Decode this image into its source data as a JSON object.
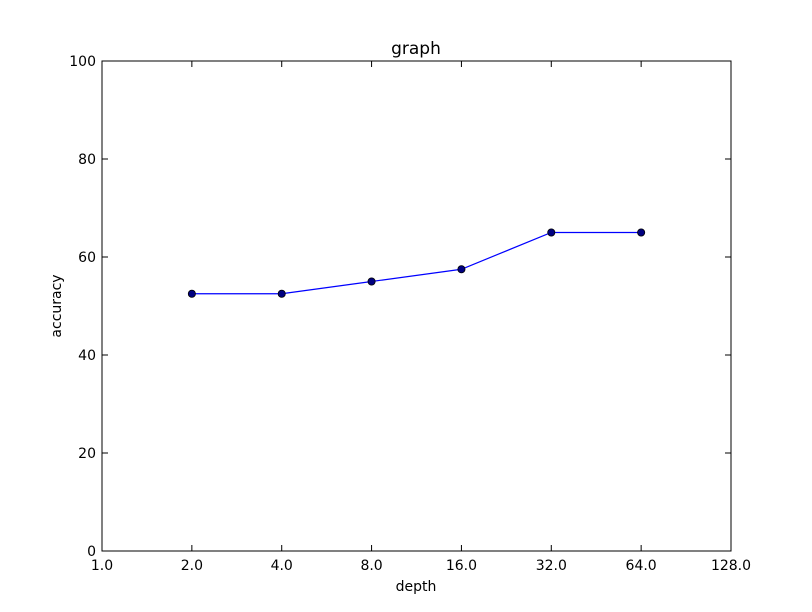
{
  "chart_data": {
    "type": "line",
    "title": "graph",
    "xlabel": "depth",
    "ylabel": "accuracy",
    "x_scale": "log2",
    "xlim": [
      1,
      128
    ],
    "ylim": [
      0,
      100
    ],
    "x_ticks": [
      "1.0",
      "2.0",
      "4.0",
      "8.0",
      "16.0",
      "32.0",
      "64.0",
      "128.0"
    ],
    "y_ticks": [
      "0",
      "20",
      "40",
      "60",
      "80",
      "100"
    ],
    "grid": false,
    "series": [
      {
        "color": "#0000ff",
        "marker_color": "#000080",
        "x": [
          2,
          4,
          8,
          16,
          32,
          64
        ],
        "y": [
          52.5,
          52.5,
          55.0,
          57.5,
          65.0,
          65.0
        ]
      }
    ]
  }
}
